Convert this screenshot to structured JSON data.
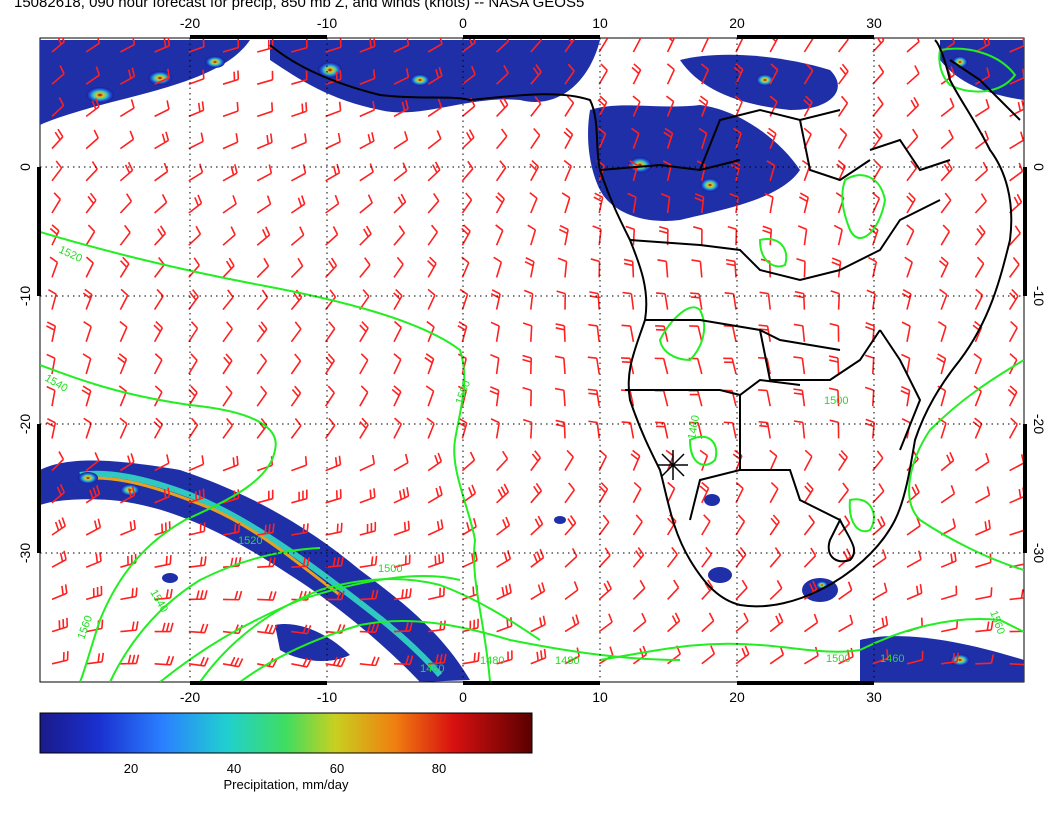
{
  "title": "15082618, 090 hour forecast for precip, 850 mb Z, and winds (knots) -- NASA GEOS5",
  "map": {
    "lon_ticks": [
      "-20",
      "-10",
      "0",
      "10",
      "20",
      "30"
    ],
    "lat_ticks": [
      "0",
      "-10",
      "-20",
      "-30"
    ],
    "contour_labels": [
      "1520",
      "1540",
      "1500",
      "1560",
      "1500",
      "1480",
      "1500",
      "1460",
      "1480",
      "1460",
      "1520",
      "1500",
      "1560",
      "1540",
      "1460"
    ],
    "colors": {
      "wind_barbs": "#ff2020",
      "contours": "#22ee22",
      "coastline": "#000000",
      "precip_low": "#1a1aa0",
      "precip_high": "#7a0000"
    }
  },
  "colorbar": {
    "label": "Precipitation, mm/day",
    "ticks": [
      "20",
      "40",
      "60",
      "80"
    ]
  }
}
